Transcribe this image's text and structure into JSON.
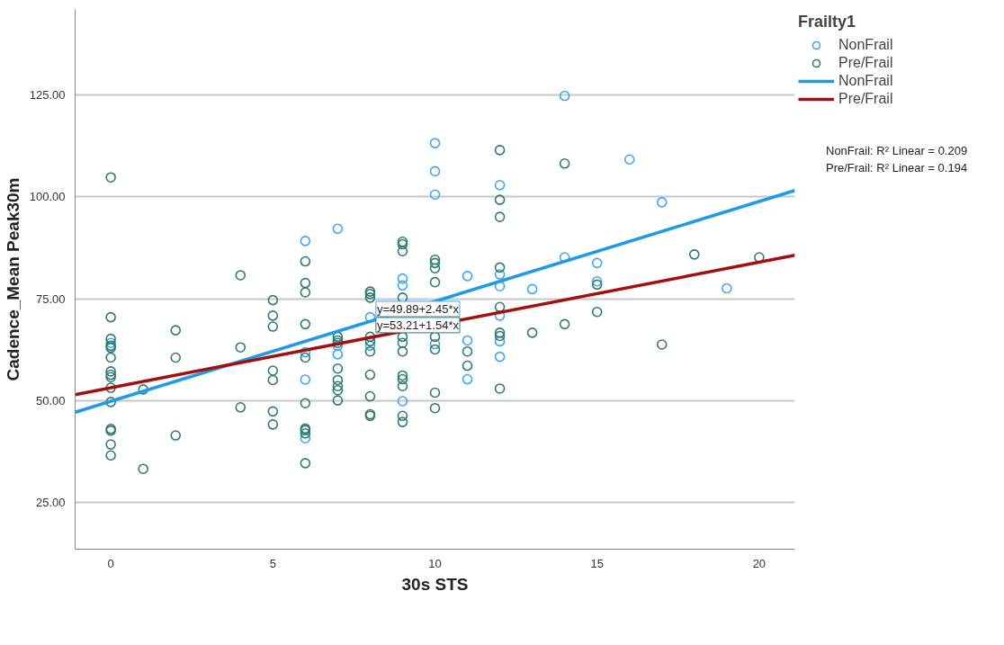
{
  "chart_data": {
    "type": "scatter",
    "xlabel": "30s STS",
    "ylabel": "Cadence_Mean Peak30m",
    "legend_title": "Frailty1",
    "legend": "right",
    "grid": "y",
    "marker": "circle",
    "xlim": [
      -1.1,
      21.1
    ],
    "ylim": [
      13.6,
      146
    ],
    "xticks": [
      0,
      5,
      10,
      15,
      20
    ],
    "yticks": [
      {
        "value": 25,
        "label": "25.00"
      },
      {
        "value": 50,
        "label": "50.00"
      },
      {
        "value": 75,
        "label": "75.00"
      },
      {
        "value": 100,
        "label": "100.00"
      },
      {
        "value": 125,
        "label": "125.00"
      }
    ],
    "series": [
      {
        "name": "NonFrail",
        "color": "#41a5ee",
        "type": "scatter",
        "x": [
          0,
          6,
          6,
          6,
          6,
          7,
          7,
          7,
          8,
          8,
          9,
          9,
          9,
          10,
          10,
          10,
          10,
          11,
          11,
          11,
          12,
          12,
          12,
          12,
          12,
          12,
          13,
          14,
          14,
          15,
          15,
          16,
          17,
          19
        ],
        "values": [
          64.2,
          89.2,
          61.9,
          55.2,
          40.8,
          92.2,
          63.5,
          61.4,
          70.5,
          63.5,
          80,
          78.3,
          49.9,
          113.2,
          106.3,
          100.6,
          63.9,
          80.6,
          64.8,
          55.3,
          102.9,
          81,
          78.1,
          70.9,
          64.6,
          60.8,
          77.4,
          124.8,
          85.2,
          83.8,
          79.3,
          109.2,
          98.7,
          77.6
        ]
      },
      {
        "name": "Pre/Frail",
        "color": "#2e7a6f",
        "type": "scatter",
        "x": [
          0,
          0,
          0,
          0,
          0,
          0,
          0,
          0,
          0,
          0,
          0,
          0,
          0,
          0,
          0,
          1,
          1,
          2,
          2,
          2,
          4,
          4,
          4,
          5,
          5,
          5,
          5,
          5,
          5,
          5,
          6,
          6,
          6,
          6,
          6,
          6,
          6,
          6,
          6,
          6,
          7,
          7,
          7,
          7,
          7,
          7,
          7,
          7,
          8,
          8,
          8,
          8,
          8,
          8,
          8,
          8,
          8,
          8,
          9,
          9,
          9,
          9,
          9,
          9,
          9,
          9,
          9,
          9,
          9,
          9,
          10,
          10,
          10,
          10,
          10,
          10,
          10,
          10,
          11,
          11,
          12,
          12,
          12,
          12,
          12,
          12,
          12,
          12,
          13,
          14,
          14,
          15,
          15,
          17,
          18,
          20
        ],
        "values": [
          104.8,
          70.5,
          65.2,
          63.5,
          63,
          60.6,
          57.2,
          56.4,
          55.8,
          53.2,
          49.7,
          43.1,
          42.7,
          39.3,
          36.6,
          52.8,
          33.3,
          67.3,
          60.6,
          41.5,
          80.8,
          63.1,
          48.4,
          74.7,
          70.9,
          68.2,
          57.4,
          55.1,
          47.4,
          44.2,
          84.2,
          78.9,
          76.6,
          68.8,
          60.6,
          49.4,
          43.2,
          42.8,
          42,
          34.7,
          65.7,
          64.8,
          64.2,
          57.9,
          55.1,
          53.6,
          52.6,
          50.1,
          76.8,
          76.2,
          75.3,
          65.7,
          64.6,
          62.1,
          56.4,
          51.1,
          46.7,
          46.3,
          89,
          88.4,
          86.7,
          75.3,
          65.7,
          64.2,
          62.1,
          56.2,
          55.3,
          53.6,
          46.3,
          44.8,
          84.6,
          83.8,
          82.5,
          79.1,
          65.7,
          62.6,
          52,
          48.2,
          62.1,
          58.6,
          111.5,
          99.3,
          95.1,
          82.7,
          73,
          66.7,
          65.9,
          53,
          66.7,
          108.2,
          68.8,
          78.5,
          71.8,
          63.8,
          85.9,
          85.2
        ]
      },
      {
        "name": "NonFrail",
        "color": "#1e9be8",
        "type": "line",
        "marker": "none",
        "x": [
          -1.1,
          21.1
        ],
        "values": [
          47.2,
          101.6
        ]
      },
      {
        "name": "Pre/Frail",
        "color": "#a50e0e",
        "type": "line",
        "marker": "none",
        "x": [
          -1.1,
          21.1
        ],
        "values": [
          51.5,
          85.7
        ]
      }
    ],
    "annotations": [
      "y=49.89+2.45*x",
      "y=53.21+1.54*x",
      "NonFrail: R² Linear = 0.209",
      "Pre/Frail: R² Linear = 0.194"
    ]
  }
}
